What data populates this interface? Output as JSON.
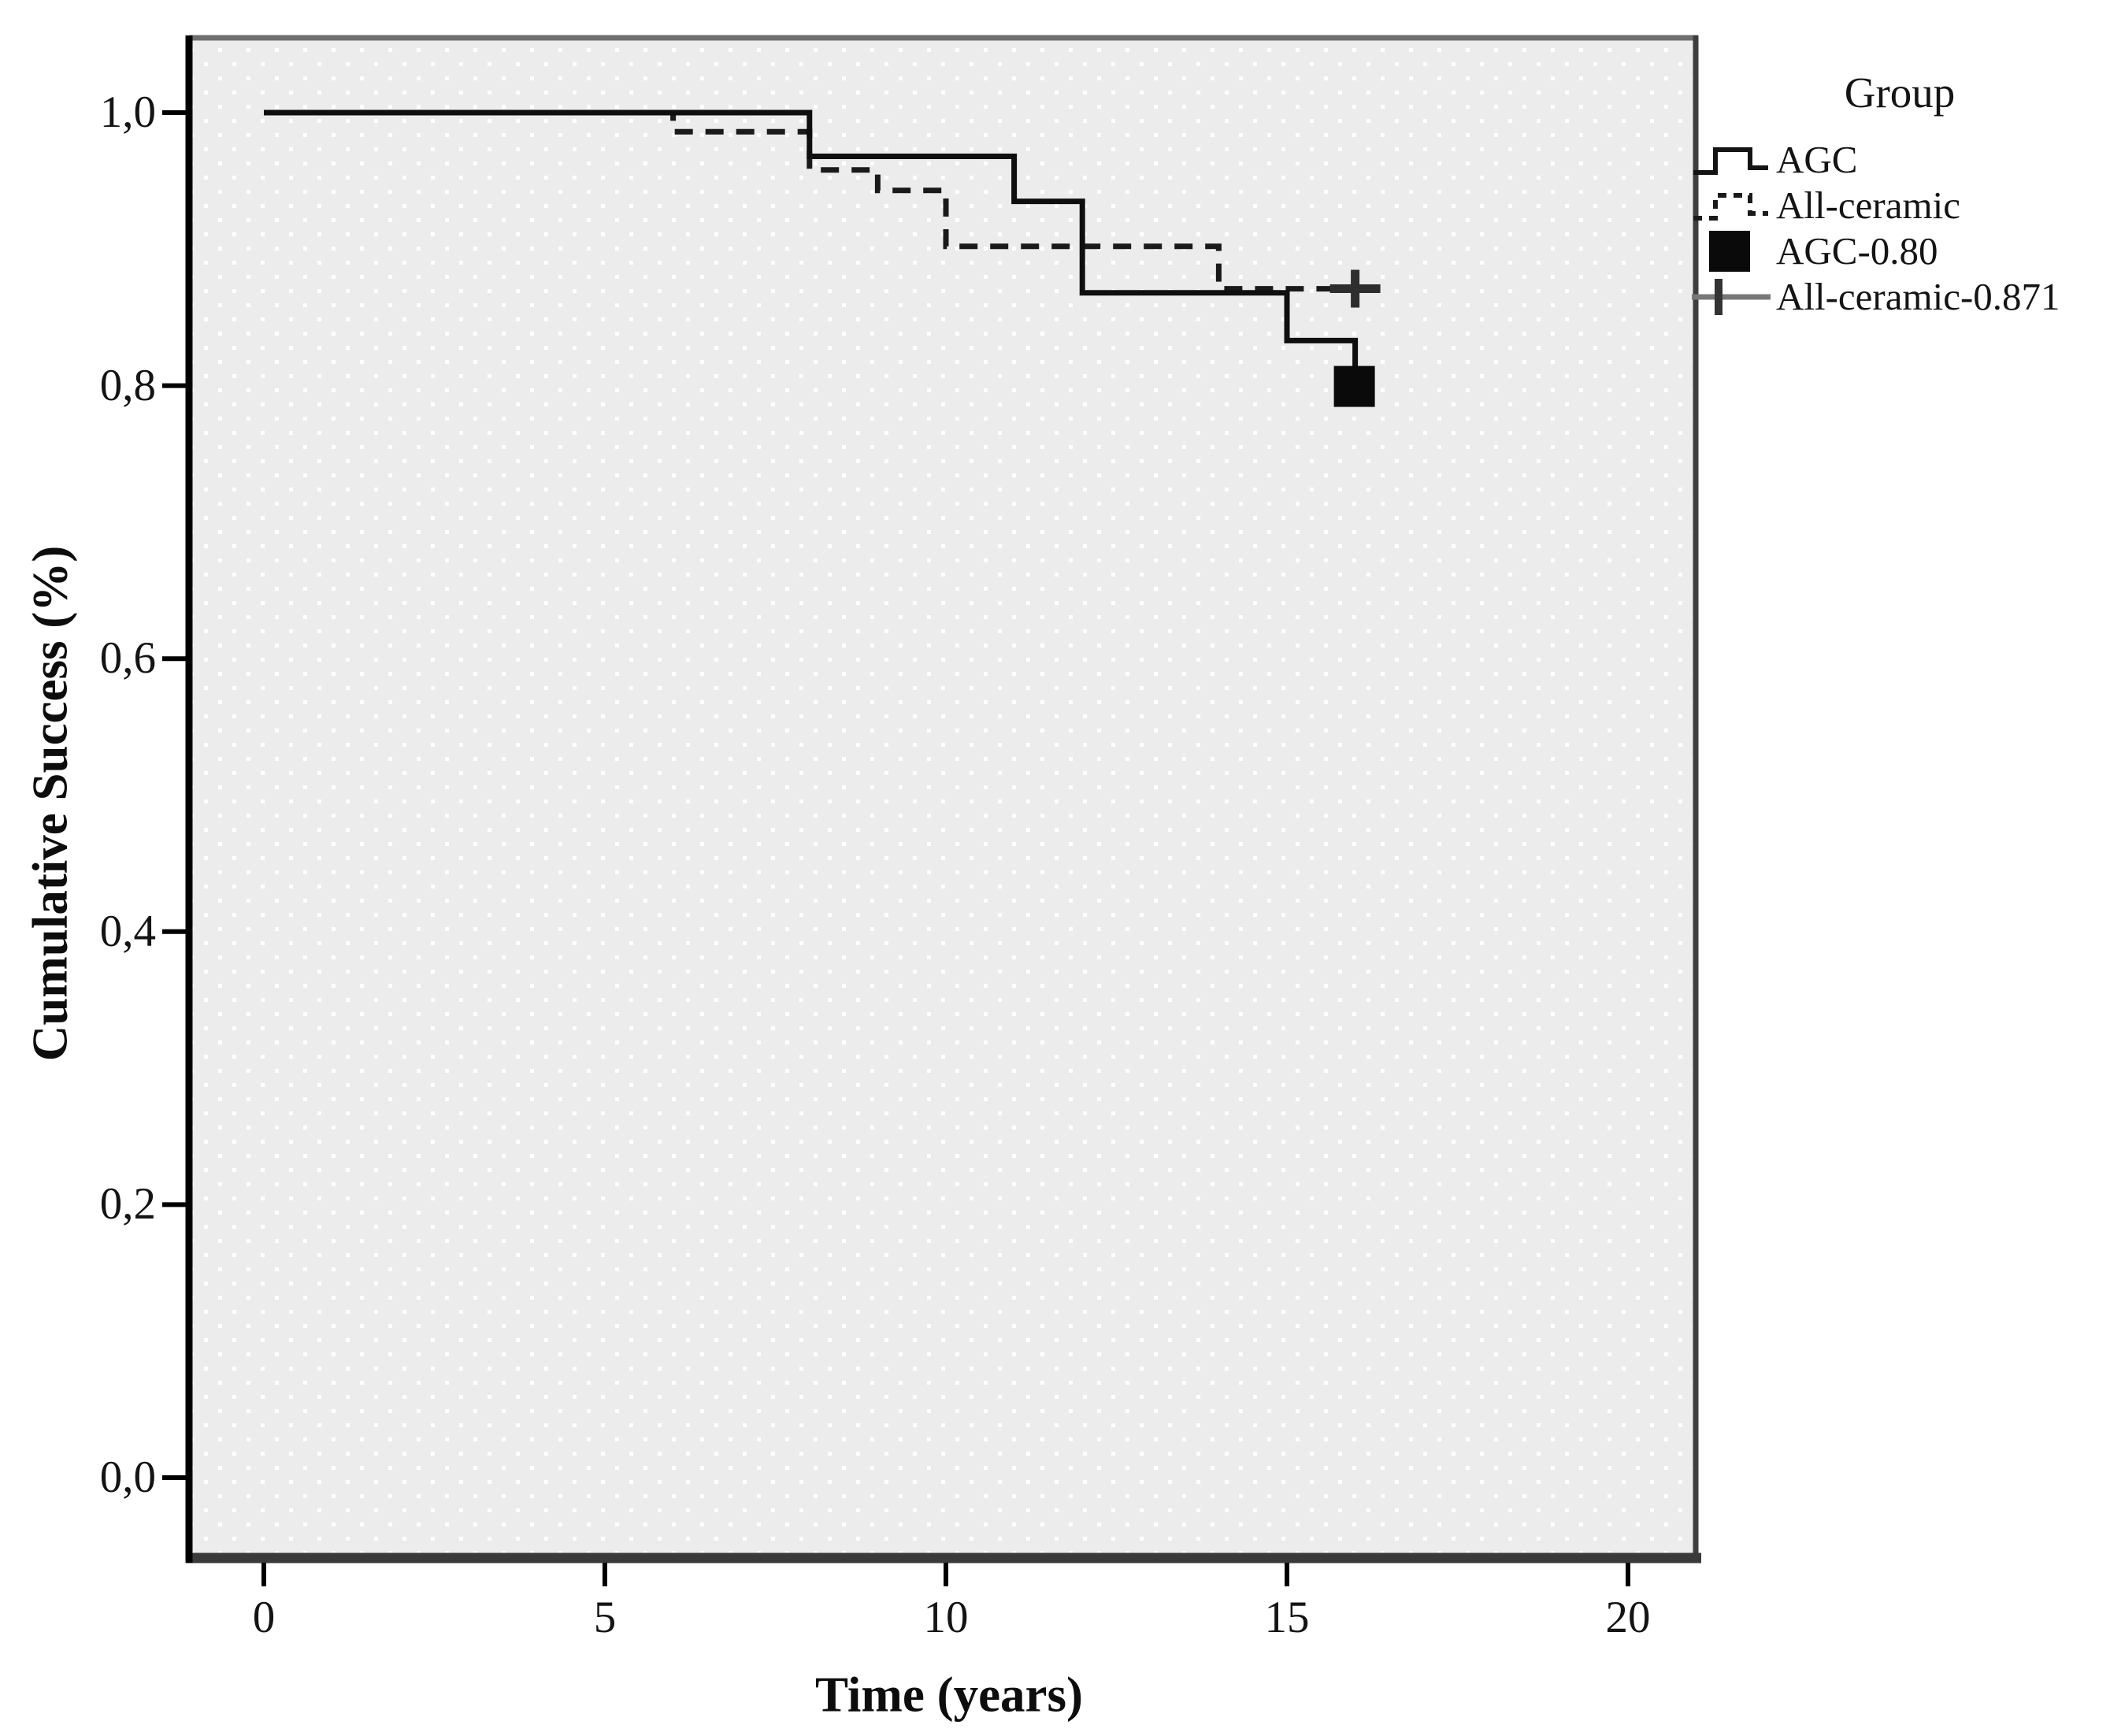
{
  "chart_data": {
    "type": "line",
    "chart_style": "kaplan-meier-step-survival",
    "title": "",
    "xlabel": "Time (years)",
    "ylabel": "Cumulative Success (%)",
    "xlim": [
      -1.1,
      21.0
    ],
    "ylim": [
      -0.055,
      1.055
    ],
    "grid": false,
    "plot_bg_color": "#ececec",
    "plot_bg_pattern": "white-dot-grid",
    "line_color": "#141414",
    "x_ticks": [
      {
        "value": 0,
        "label": "0"
      },
      {
        "value": 5,
        "label": "5"
      },
      {
        "value": 10,
        "label": "10"
      },
      {
        "value": 15,
        "label": "15"
      },
      {
        "value": 20,
        "label": "20"
      }
    ],
    "y_ticks": [
      {
        "value": 1.0,
        "label": "1,0"
      },
      {
        "value": 0.8,
        "label": "0,8"
      },
      {
        "value": 0.6,
        "label": "0,6"
      },
      {
        "value": 0.4,
        "label": "0,4"
      },
      {
        "value": 0.2,
        "label": "0,2"
      },
      {
        "value": 0.0,
        "label": "0,0"
      }
    ],
    "legend": {
      "title": "Group",
      "position": "outside-top-right",
      "entries": [
        {
          "label": "AGC",
          "marker": "solid-step-line"
        },
        {
          "label": "All-ceramic",
          "marker": "dashed-step-line"
        },
        {
          "label": "AGC-0.80",
          "marker": "filled-black-square"
        },
        {
          "label": "All-ceramic-0.871",
          "marker": "plus-cross-marker"
        }
      ]
    },
    "series": [
      {
        "name": "AGC",
        "line_style": "solid",
        "final_value": 0.8,
        "steps": [
          {
            "t": 0,
            "v": 1.0
          },
          {
            "t": 8,
            "v": 0.968
          },
          {
            "t": 11,
            "v": 0.935
          },
          {
            "t": 12,
            "v": 0.868
          },
          {
            "t": 15,
            "v": 0.833
          },
          {
            "t": 16,
            "v": 0.8
          }
        ],
        "end_marker": {
          "type": "filled-square",
          "t": 16,
          "v": 0.8
        }
      },
      {
        "name": "All-ceramic",
        "line_style": "dashed",
        "final_value": 0.871,
        "steps": [
          {
            "t": 0,
            "v": 1.0
          },
          {
            "t": 6,
            "v": 0.986
          },
          {
            "t": 8,
            "v": 0.958
          },
          {
            "t": 9,
            "v": 0.943
          },
          {
            "t": 10,
            "v": 0.902
          },
          {
            "t": 14,
            "v": 0.871
          },
          {
            "t": 16,
            "v": 0.871
          }
        ],
        "end_marker": {
          "type": "plus-cross",
          "t": 16,
          "v": 0.871
        }
      }
    ]
  }
}
